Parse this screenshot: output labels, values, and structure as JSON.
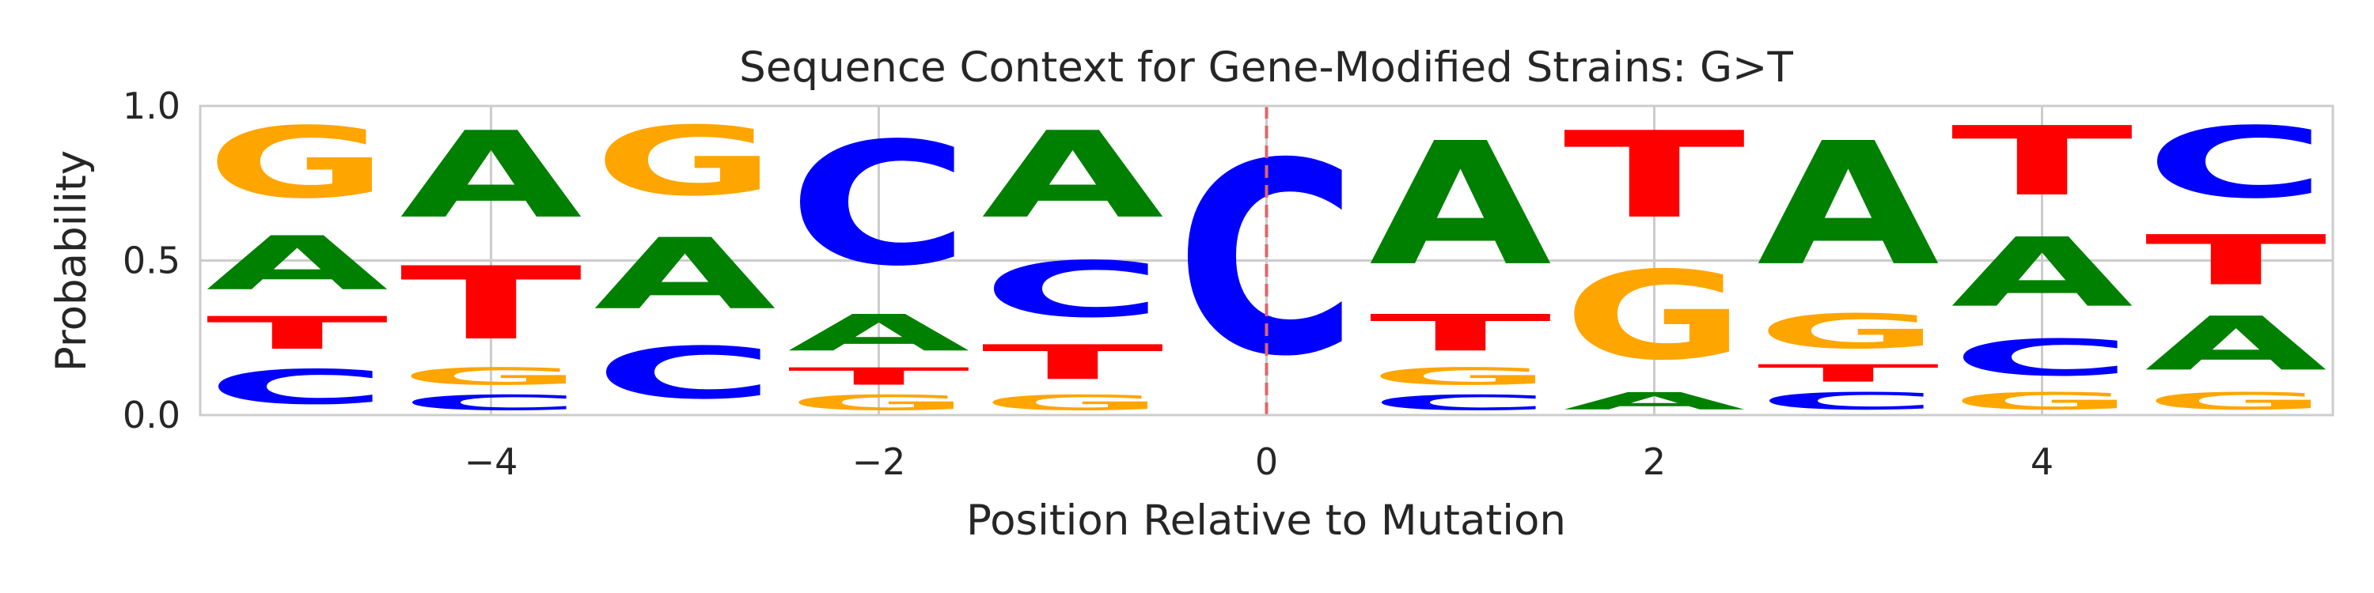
{
  "chart_data": {
    "type": "sequence-logo",
    "title": "Sequence Context for Gene-Modified Strains: G>T",
    "xlabel": "Position Relative to Mutation",
    "ylabel": "Probability",
    "xlim": [
      -5.5,
      5.5
    ],
    "ylim": [
      0,
      1
    ],
    "xticks": [
      -4,
      -2,
      0,
      2,
      4
    ],
    "yticks": [
      0.0,
      0.5,
      1.0
    ],
    "grid": true,
    "mutation_line_x": 0,
    "colors": {
      "A": "#008000",
      "C": "#0000ff",
      "G": "#ffa500",
      "T": "#ff0000",
      "mutation_line": "#e06666"
    },
    "positions": [
      {
        "x": -5,
        "letters": [
          {
            "base": "C",
            "p": 0.18
          },
          {
            "base": "T",
            "p": 0.17
          },
          {
            "base": "A",
            "p": 0.28
          },
          {
            "base": "G",
            "p": 0.37
          }
        ]
      },
      {
        "x": -4,
        "letters": [
          {
            "base": "C",
            "p": 0.08
          },
          {
            "base": "G",
            "p": 0.09
          },
          {
            "base": "T",
            "p": 0.38
          },
          {
            "base": "A",
            "p": 0.45
          }
        ]
      },
      {
        "x": -3,
        "letters": [
          {
            "base": "C",
            "p": 0.27
          },
          {
            "base": "A",
            "p": 0.37
          },
          {
            "base": "G",
            "p": 0.36
          }
        ]
      },
      {
        "x": -2,
        "letters": [
          {
            "base": "G",
            "p": 0.08
          },
          {
            "base": "T",
            "p": 0.09
          },
          {
            "base": "A",
            "p": 0.19
          },
          {
            "base": "C",
            "p": 0.64
          }
        ]
      },
      {
        "x": -1,
        "letters": [
          {
            "base": "G",
            "p": 0.08
          },
          {
            "base": "T",
            "p": 0.18
          },
          {
            "base": "C",
            "p": 0.29
          },
          {
            "base": "A",
            "p": 0.45
          }
        ]
      },
      {
        "x": 0,
        "letters": [
          {
            "base": "C",
            "p": 1.0
          }
        ]
      },
      {
        "x": 1,
        "letters": [
          {
            "base": "C",
            "p": 0.08
          },
          {
            "base": "G",
            "p": 0.09
          },
          {
            "base": "T",
            "p": 0.19
          },
          {
            "base": "A",
            "p": 0.64
          }
        ]
      },
      {
        "x": 2,
        "letters": [
          {
            "base": "A",
            "p": 0.09
          },
          {
            "base": "G",
            "p": 0.46
          },
          {
            "base": "T",
            "p": 0.45
          }
        ]
      },
      {
        "x": 3,
        "letters": [
          {
            "base": "C",
            "p": 0.09
          },
          {
            "base": "T",
            "p": 0.09
          },
          {
            "base": "G",
            "p": 0.18
          },
          {
            "base": "A",
            "p": 0.64
          }
        ]
      },
      {
        "x": 4,
        "letters": [
          {
            "base": "G",
            "p": 0.09
          },
          {
            "base": "C",
            "p": 0.19
          },
          {
            "base": "A",
            "p": 0.36
          },
          {
            "base": "T",
            "p": 0.36
          }
        ]
      },
      {
        "x": 5,
        "letters": [
          {
            "base": "G",
            "p": 0.09
          },
          {
            "base": "A",
            "p": 0.28
          },
          {
            "base": "T",
            "p": 0.26
          },
          {
            "base": "C",
            "p": 0.37
          }
        ]
      }
    ]
  }
}
